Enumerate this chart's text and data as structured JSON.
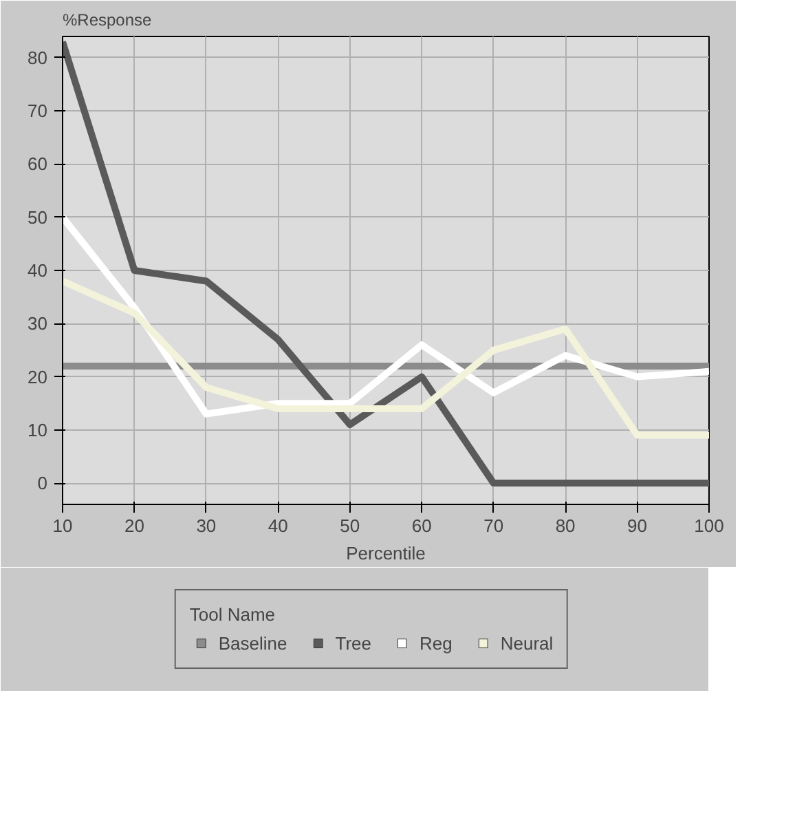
{
  "chart_data": {
    "type": "line",
    "xlabel": "Percentile",
    "ylabel": "%Response",
    "legend_title": "Tool Name",
    "x": [
      10,
      20,
      30,
      40,
      50,
      60,
      70,
      80,
      90,
      100
    ],
    "series": [
      {
        "name": "Baseline",
        "color": "#8c8c8c",
        "values": [
          22,
          22,
          22,
          22,
          22,
          22,
          22,
          22,
          22,
          22
        ]
      },
      {
        "name": "Tree",
        "color": "#5a5a5a",
        "values": [
          83,
          40,
          38,
          27,
          11,
          20,
          0,
          0,
          0,
          0
        ]
      },
      {
        "name": "Reg",
        "color": "#ffffff",
        "values": [
          50,
          33,
          13,
          15,
          15,
          26,
          17,
          24,
          20,
          21
        ]
      },
      {
        "name": "Neural",
        "color": "#f3f3dc",
        "values": [
          38,
          32,
          18,
          14,
          14,
          14,
          25,
          29,
          9,
          9
        ]
      }
    ],
    "xlim": [
      10,
      100
    ],
    "ylim": [
      -4,
      84
    ],
    "xticks": [
      10,
      20,
      30,
      40,
      50,
      60,
      70,
      80,
      90,
      100
    ],
    "yticks": [
      0,
      10,
      20,
      30,
      40,
      50,
      60,
      70,
      80
    ],
    "grid": true,
    "legend": "bottom",
    "marker": "none",
    "line_style": "solid"
  }
}
